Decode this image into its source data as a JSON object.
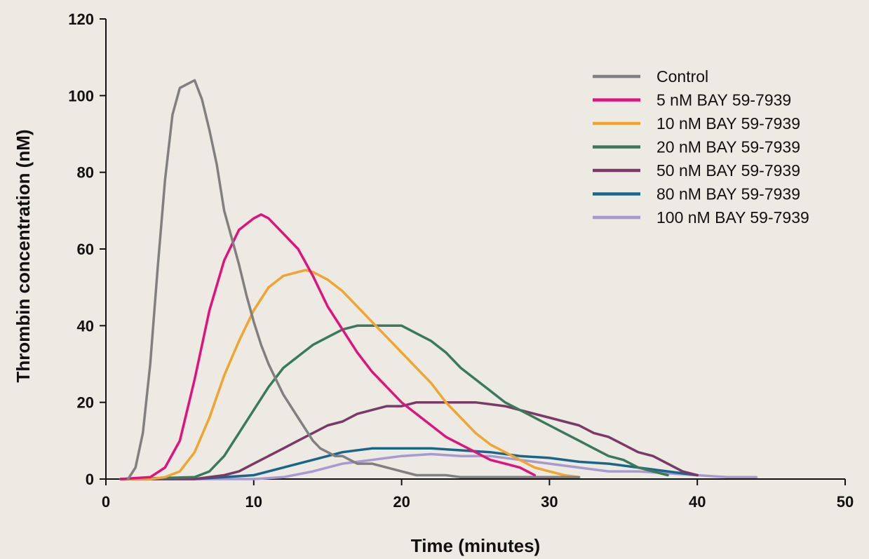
{
  "chart_data": {
    "type": "line",
    "title": "",
    "xlabel": "Time (minutes)",
    "ylabel": "Thrombin concentration (nM)",
    "xlim": [
      0,
      50
    ],
    "ylim": [
      0,
      120
    ],
    "xticks": [
      0,
      10,
      20,
      30,
      40,
      50
    ],
    "yticks": [
      0,
      20,
      40,
      60,
      80,
      100,
      120
    ],
    "grid": false,
    "legend_position": "top-right",
    "series": [
      {
        "name": "Control",
        "color": "#808080",
        "x": [
          1.5,
          2.0,
          2.5,
          3.0,
          3.5,
          4.0,
          4.5,
          5.0,
          5.5,
          6.0,
          6.5,
          7.0,
          7.5,
          8.0,
          8.5,
          9.0,
          9.5,
          10.0,
          10.5,
          11.0,
          11.5,
          12.0,
          12.5,
          13.0,
          13.5,
          14.0,
          14.5,
          15.0,
          15.5,
          16.0,
          17.0,
          18.0,
          19.0,
          20.0,
          21.0,
          22.0,
          23.0,
          24.0,
          26.0,
          28.0,
          30.0,
          32.0
        ],
        "y": [
          0,
          3,
          12,
          30,
          55,
          78,
          95,
          102,
          103,
          104,
          99,
          91,
          82,
          70,
          63,
          56,
          48,
          41,
          35,
          30,
          26,
          22,
          19,
          16,
          13,
          10,
          8,
          7,
          6,
          6,
          4,
          4,
          3,
          2,
          1,
          1,
          1,
          0.5,
          0.5,
          0.5,
          0.5,
          0.5
        ]
      },
      {
        "name": "5 nM BAY 59-7939",
        "color": "#e0137c",
        "x": [
          1.0,
          3.0,
          4.0,
          5.0,
          6.0,
          7.0,
          8.0,
          9.0,
          10.0,
          10.5,
          11.0,
          12.0,
          13.0,
          14.0,
          15.0,
          16.0,
          17.0,
          18.0,
          19.0,
          20.0,
          21.0,
          22.0,
          23.0,
          24.0,
          25.0,
          26.0,
          27.0,
          28.0,
          29.0
        ],
        "y": [
          0,
          0.5,
          3,
          10,
          26,
          44,
          57,
          65,
          68,
          69,
          68,
          64,
          60,
          53,
          45,
          39,
          33,
          28,
          24,
          20,
          17,
          14,
          11,
          9,
          7,
          5,
          4,
          3,
          1
        ]
      },
      {
        "name": "10 nM BAY 59-7939",
        "color": "#f0a530",
        "x": [
          1.0,
          3.0,
          4.0,
          5.0,
          6.0,
          7.0,
          8.0,
          9.0,
          10.0,
          11.0,
          12.0,
          13.0,
          13.5,
          14.0,
          15.0,
          16.0,
          17.0,
          18.0,
          19.0,
          20.0,
          21.0,
          22.0,
          23.0,
          24.0,
          25.0,
          26.0,
          27.0,
          28.0,
          29.0,
          30.0,
          31.0,
          32.0
        ],
        "y": [
          0,
          0,
          0.5,
          2,
          7,
          16,
          27,
          36,
          44,
          50,
          53,
          54,
          54.5,
          54,
          52,
          49,
          45,
          41,
          37,
          33,
          29,
          25,
          20,
          16,
          12,
          9,
          7,
          5,
          3,
          2,
          1,
          0.5
        ]
      },
      {
        "name": "20 nM BAY 59-7939",
        "color": "#3a7a5a",
        "x": [
          1.0,
          6.0,
          7.0,
          8.0,
          9.0,
          10.0,
          11.0,
          12.0,
          13.0,
          14.0,
          15.0,
          16.0,
          17.0,
          18.0,
          19.0,
          20.0,
          21.0,
          22.0,
          23.0,
          24.0,
          25.0,
          26.0,
          27.0,
          28.0,
          29.0,
          30.0,
          31.0,
          32.0,
          33.0,
          34.0,
          35.0,
          36.0,
          37.0,
          38.0
        ],
        "y": [
          0,
          0.5,
          2,
          6,
          12,
          18,
          24,
          29,
          32,
          35,
          37,
          39,
          40,
          40,
          40,
          40,
          38,
          36,
          33,
          29,
          26,
          23,
          20,
          18,
          16,
          14,
          12,
          10,
          8,
          6,
          5,
          3,
          2,
          1
        ]
      },
      {
        "name": "50 nM BAY 59-7939",
        "color": "#7a3a68",
        "x": [
          1.0,
          6.0,
          8.0,
          9.0,
          10.0,
          11.0,
          12.0,
          13.0,
          14.0,
          15.0,
          16.0,
          17.0,
          18.0,
          19.0,
          20.0,
          21.0,
          22.0,
          23.0,
          24.0,
          25.0,
          26.0,
          27.0,
          28.0,
          29.0,
          30.0,
          31.0,
          32.0,
          33.0,
          34.0,
          35.0,
          36.0,
          37.0,
          38.0,
          39.0,
          40.0
        ],
        "y": [
          0,
          0,
          1,
          2,
          4,
          6,
          8,
          10,
          12,
          14,
          15,
          17,
          18,
          19,
          19,
          20,
          20,
          20,
          20,
          20,
          19.5,
          19,
          18,
          17,
          16,
          15,
          14,
          12,
          11,
          9,
          7,
          6,
          4,
          2,
          1
        ]
      },
      {
        "name": "80 nM BAY 59-7939",
        "color": "#1a6688",
        "x": [
          1.0,
          6.0,
          8.0,
          10.0,
          12.0,
          14.0,
          16.0,
          18.0,
          20.0,
          22.0,
          24.0,
          26.0,
          28.0,
          30.0,
          32.0,
          34.0,
          36.0,
          38.0,
          40.0
        ],
        "y": [
          0,
          0,
          0.5,
          1,
          3,
          5,
          7,
          8,
          8,
          8,
          7.5,
          7,
          6,
          5.5,
          4.5,
          4,
          3,
          2,
          1
        ]
      },
      {
        "name": "100 nM BAY 59-7939",
        "color": "#a89ad0",
        "x": [
          1.0,
          10.0,
          12.0,
          14.0,
          16.0,
          18.0,
          20.0,
          22.0,
          24.0,
          26.0,
          28.0,
          30.0,
          32.0,
          34.0,
          36.0,
          38.0,
          40.0,
          42.0,
          44.0
        ],
        "y": [
          0,
          0,
          0.5,
          2,
          4,
          5,
          6,
          6.5,
          6,
          6,
          5,
          4,
          3,
          2,
          2,
          1.5,
          1,
          0.5,
          0.5
        ]
      }
    ]
  }
}
